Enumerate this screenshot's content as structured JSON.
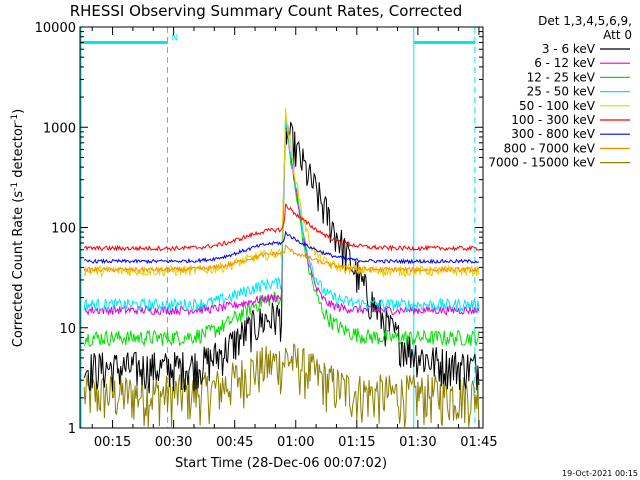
{
  "chart_data": {
    "type": "line",
    "title": "RHESSI Observing Summary Count Rates, Corrected",
    "xlabel": "Start Time (28-Dec-06 00:07:02)",
    "ylabel_main": "Corrected Count Rate (s",
    "ylabel_sup1": "-1",
    "ylabel_mid": " detector",
    "ylabel_sup2": "-1",
    "ylabel_end": ")",
    "yscale": "log",
    "ylim": [
      1,
      10000
    ],
    "xlim_minutes": [
      7,
      106
    ],
    "xticks": [
      {
        "label": "00:15",
        "minute": 15
      },
      {
        "label": "00:30",
        "minute": 30
      },
      {
        "label": "00:45",
        "minute": 45
      },
      {
        "label": "01:00",
        "minute": 60
      },
      {
        "label": "01:15",
        "minute": 75
      },
      {
        "label": "01:30",
        "minute": 90
      },
      {
        "label": "01:45",
        "minute": 105
      }
    ],
    "yticks": [
      {
        "label": "1",
        "value": 1
      },
      {
        "label": "10",
        "value": 10
      },
      {
        "label": "100",
        "value": 100
      },
      {
        "label": "1000",
        "value": 1000
      },
      {
        "label": "10000",
        "value": 10000
      }
    ],
    "legend_header": [
      "Det 1,3,4,5,6,9,",
      "Att 0"
    ],
    "legend_placement": "right",
    "peak_minute": 57.5,
    "markers": {
      "night_start_minute": 28.5,
      "night_end_minute": 89,
      "saa_end_minute": 104,
      "night_label": "N",
      "bar_level": 7000,
      "color": "#00e5ee"
    },
    "series": [
      {
        "name": "3 - 6 keV",
        "color": "#000000",
        "base_edges": 4,
        "base_mid": 13,
        "peak": 1000,
        "tail_tau": 5,
        "noise": 0.45
      },
      {
        "name": "6 - 12 keV",
        "color": "#e000e0",
        "base_edges": 15,
        "base_mid": 20,
        "peak": 1200,
        "tail_tau": 1.5,
        "noise": 0.1
      },
      {
        "name": "12 - 25 keV",
        "color": "#00e000",
        "base_edges": 8,
        "base_mid": 20,
        "peak": 1100,
        "tail_tau": 1.5,
        "noise": 0.18
      },
      {
        "name": "25 - 50 keV",
        "color": "#00e5ee",
        "base_edges": 17,
        "base_mid": 28,
        "peak": 1300,
        "tail_tau": 1.5,
        "noise": 0.14
      },
      {
        "name": "50 - 100 keV",
        "color": "#e6d200",
        "base_edges": 37,
        "base_mid": 55,
        "peak": 1400,
        "tail_tau": 1.5,
        "noise": 0.12
      },
      {
        "name": "100 - 300 keV",
        "color": "#ff0000",
        "base_edges": 62,
        "base_mid": 95,
        "peak": 170,
        "tail_tau": 5,
        "noise": 0.05
      },
      {
        "name": "300 - 800 keV",
        "color": "#0000ff",
        "base_edges": 46,
        "base_mid": 70,
        "peak": 90,
        "tail_tau": 3,
        "noise": 0.04
      },
      {
        "name": "800 - 7000 keV",
        "color": "#ff8c00",
        "base_edges": 38,
        "base_mid": 55,
        "peak": 65,
        "tail_tau": 2,
        "noise": 0.05
      },
      {
        "name": "7000 - 15000 keV",
        "color": "#8b8000",
        "base_edges": 2.2,
        "base_mid": 4.5,
        "peak": 5.2,
        "tail_tau": 3,
        "noise": 0.55
      }
    ]
  },
  "footer": {
    "timestamp": "19-Oct-2021 00:15"
  }
}
